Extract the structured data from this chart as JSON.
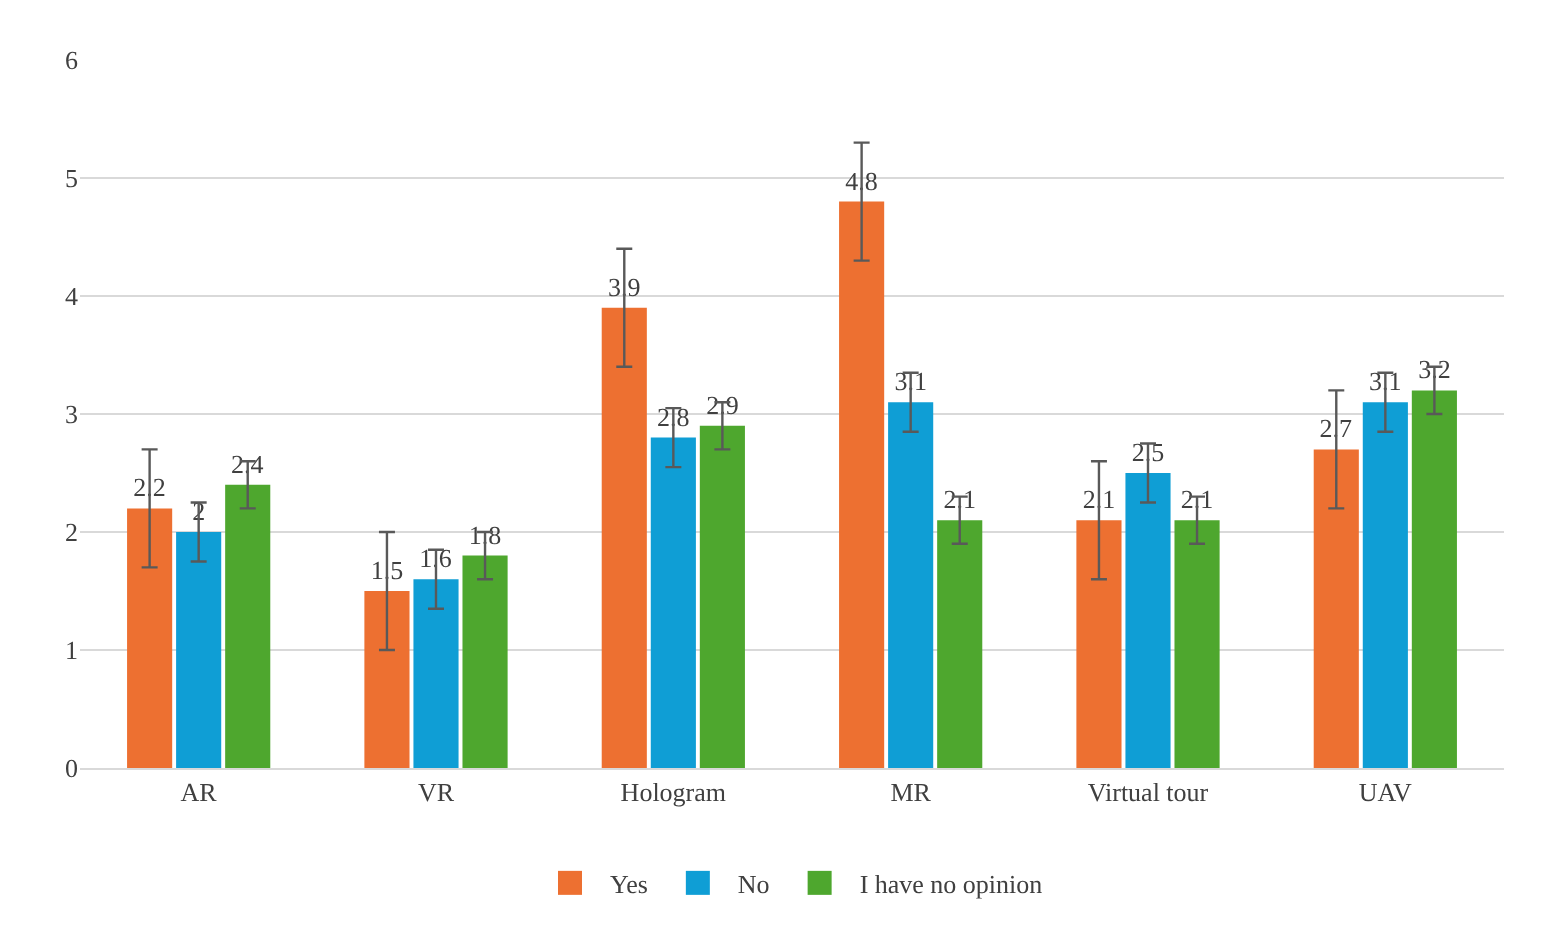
{
  "chart_data": {
    "type": "bar",
    "categories": [
      "AR",
      "VR",
      "Hologram",
      "MR",
      "Virtual tour",
      "UAV"
    ],
    "series": [
      {
        "name": "Yes",
        "color": "#ed7031",
        "values": [
          2.2,
          1.5,
          3.9,
          4.8,
          2.1,
          2.7
        ],
        "errors": [
          0.5,
          0.5,
          0.5,
          0.5,
          0.5,
          0.5
        ]
      },
      {
        "name": "No",
        "color": "#0f9ed5",
        "values": [
          2,
          1.6,
          2.8,
          3.1,
          2.5,
          3.1
        ],
        "errors": [
          0.25,
          0.25,
          0.25,
          0.25,
          0.25,
          0.25
        ]
      },
      {
        "name": "I have no opinion",
        "color": "#4ea72e",
        "values": [
          2.4,
          1.8,
          2.9,
          2.1,
          2.1,
          3.2
        ],
        "errors": [
          0.2,
          0.2,
          0.2,
          0.2,
          0.2,
          0.2
        ]
      }
    ],
    "ylim": [
      0,
      6
    ],
    "yticks": [
      0,
      1,
      2,
      3,
      4,
      5,
      6
    ],
    "grid": "y",
    "legend": "bottom",
    "data_labels": true
  }
}
